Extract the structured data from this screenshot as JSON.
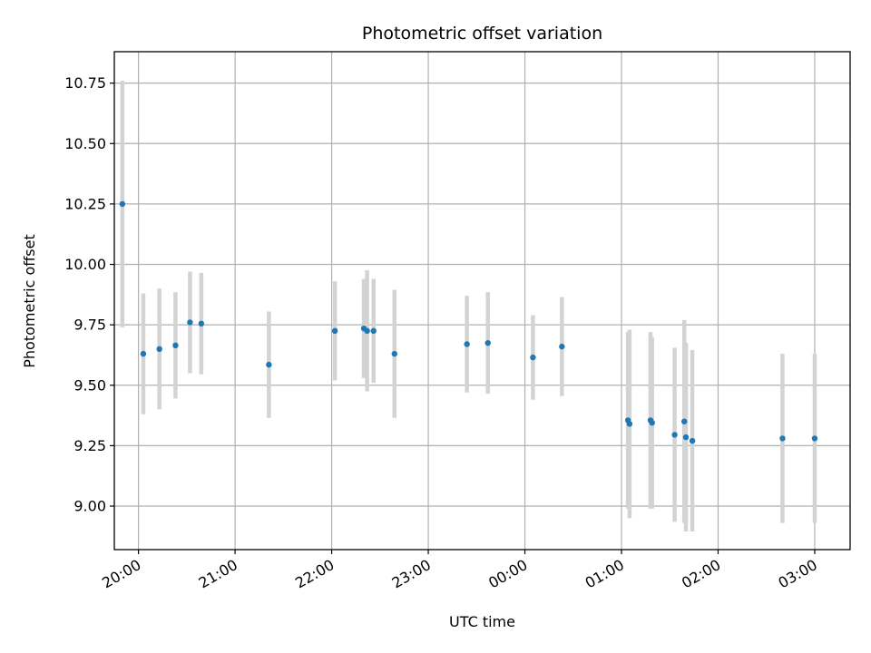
{
  "chart_data": {
    "type": "scatter",
    "title": "Photometric offset variation",
    "xlabel": "UTC time",
    "ylabel": "Photometric offset",
    "grid": true,
    "legend": "none",
    "colors": {
      "point": "#1f77b4",
      "errorbar": "#d3d3d3",
      "grid": "#b0b0b0",
      "axis": "#000000"
    },
    "xlim": [
      "2024-01-01T19:45",
      "2024-01-02T03:22"
    ],
    "ylim": [
      8.82,
      10.88
    ],
    "x_ticks": [
      {
        "value": "2024-01-01T20:00",
        "label": "20:00"
      },
      {
        "value": "2024-01-01T21:00",
        "label": "21:00"
      },
      {
        "value": "2024-01-01T22:00",
        "label": "22:00"
      },
      {
        "value": "2024-01-01T23:00",
        "label": "23:00"
      },
      {
        "value": "2024-01-02T00:00",
        "label": "00:00"
      },
      {
        "value": "2024-01-02T01:00",
        "label": "01:00"
      },
      {
        "value": "2024-01-02T02:00",
        "label": "02:00"
      },
      {
        "value": "2024-01-02T03:00",
        "label": "03:00"
      }
    ],
    "y_ticks": [
      {
        "value": 9.0,
        "label": "9.00"
      },
      {
        "value": 9.25,
        "label": "9.25"
      },
      {
        "value": 9.5,
        "label": "9.50"
      },
      {
        "value": 9.75,
        "label": "9.75"
      },
      {
        "value": 10.0,
        "label": "10.00"
      },
      {
        "value": 10.25,
        "label": "10.25"
      },
      {
        "value": 10.5,
        "label": "10.50"
      },
      {
        "value": 10.75,
        "label": "10.75"
      }
    ],
    "series": [
      {
        "points": [
          {
            "x": "2024-01-01T19:50",
            "y": 10.25,
            "err": 0.51
          },
          {
            "x": "2024-01-01T20:03",
            "y": 9.63,
            "err": 0.25
          },
          {
            "x": "2024-01-01T20:13",
            "y": 9.65,
            "err": 0.25
          },
          {
            "x": "2024-01-01T20:23",
            "y": 9.665,
            "err": 0.22
          },
          {
            "x": "2024-01-01T20:32",
            "y": 9.76,
            "err": 0.21
          },
          {
            "x": "2024-01-01T20:39",
            "y": 9.755,
            "err": 0.21
          },
          {
            "x": "2024-01-01T21:21",
            "y": 9.585,
            "err": 0.22
          },
          {
            "x": "2024-01-01T22:02",
            "y": 9.725,
            "err": 0.205
          },
          {
            "x": "2024-01-01T22:20",
            "y": 9.735,
            "err": 0.205
          },
          {
            "x": "2024-01-01T22:22",
            "y": 9.725,
            "err": 0.25
          },
          {
            "x": "2024-01-01T22:26",
            "y": 9.725,
            "err": 0.215
          },
          {
            "x": "2024-01-01T22:39",
            "y": 9.63,
            "err": 0.265
          },
          {
            "x": "2024-01-01T23:24",
            "y": 9.67,
            "err": 0.2
          },
          {
            "x": "2024-01-01T23:37",
            "y": 9.675,
            "err": 0.21
          },
          {
            "x": "2024-01-02T00:05",
            "y": 9.615,
            "err": 0.175
          },
          {
            "x": "2024-01-02T00:23",
            "y": 9.66,
            "err": 0.205
          },
          {
            "x": "2024-01-02T01:04",
            "y": 9.355,
            "err": 0.365
          },
          {
            "x": "2024-01-02T01:05",
            "y": 9.34,
            "err": 0.39
          },
          {
            "x": "2024-01-02T01:18",
            "y": 9.355,
            "err": 0.365
          },
          {
            "x": "2024-01-02T01:19",
            "y": 9.345,
            "err": 0.355
          },
          {
            "x": "2024-01-02T01:33",
            "y": 9.295,
            "err": 0.36
          },
          {
            "x": "2024-01-02T01:39",
            "y": 9.35,
            "err": 0.42
          },
          {
            "x": "2024-01-02T01:40",
            "y": 9.285,
            "err": 0.39
          },
          {
            "x": "2024-01-02T01:44",
            "y": 9.27,
            "err": 0.375
          },
          {
            "x": "2024-01-02T02:40",
            "y": 9.28,
            "err": 0.35
          },
          {
            "x": "2024-01-02T03:00",
            "y": 9.28,
            "err": 0.35
          }
        ]
      }
    ]
  }
}
